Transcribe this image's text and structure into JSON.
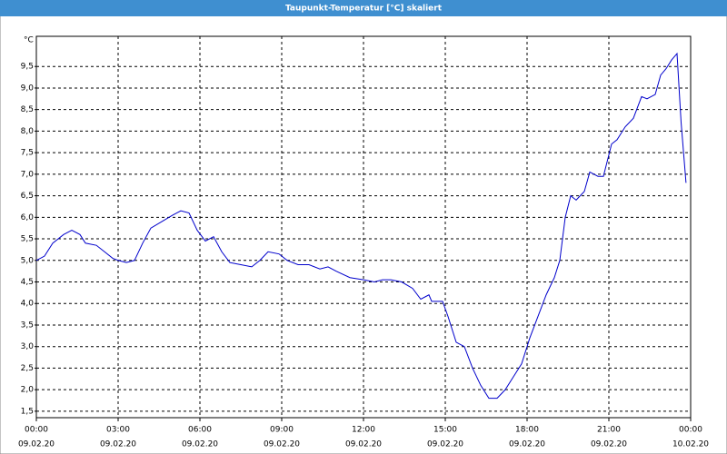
{
  "chart_data": {
    "type": "line",
    "title": "Taupunkt-Temperatur [°C] skaliert",
    "y_unit": "°C",
    "x": [
      0,
      0.3,
      0.6,
      1.0,
      1.3,
      1.6,
      1.8,
      2.2,
      2.5,
      2.8,
      3.0,
      3.3,
      3.6,
      3.9,
      4.2,
      4.6,
      5.0,
      5.3,
      5.6,
      5.9,
      6.2,
      6.5,
      6.8,
      7.1,
      7.5,
      7.9,
      8.2,
      8.5,
      8.9,
      9.2,
      9.6,
      10.0,
      10.4,
      10.7,
      11.0,
      11.5,
      12.0,
      12.4,
      12.7,
      13.0,
      13.4,
      13.8,
      14.1,
      14.4,
      14.5,
      14.9,
      15.1,
      15.4,
      15.7,
      16.0,
      16.3,
      16.6,
      16.9,
      17.2,
      17.5,
      17.8,
      18.1,
      18.4,
      18.7,
      19.0,
      19.2,
      19.4,
      19.6,
      19.8,
      20.1,
      20.3,
      20.6,
      20.8,
      21.1,
      21.3,
      21.6,
      21.9,
      22.2,
      22.4,
      22.7,
      22.9,
      23.1,
      23.3,
      23.5,
      23.65,
      23.83
    ],
    "series": [
      {
        "name": "Taupunkt-Temperatur",
        "color": "#0000cc",
        "values": [
          5.0,
          5.1,
          5.4,
          5.6,
          5.7,
          5.6,
          5.4,
          5.35,
          5.2,
          5.05,
          5.0,
          4.95,
          5.0,
          5.4,
          5.75,
          5.9,
          6.05,
          6.15,
          6.1,
          5.7,
          5.45,
          5.55,
          5.2,
          4.95,
          4.9,
          4.85,
          5.0,
          5.2,
          5.15,
          5.0,
          4.9,
          4.9,
          4.8,
          4.85,
          4.75,
          4.6,
          4.55,
          4.5,
          4.55,
          4.55,
          4.5,
          4.35,
          4.1,
          4.2,
          4.05,
          4.05,
          3.7,
          3.1,
          3.0,
          2.5,
          2.1,
          1.8,
          1.8,
          2.0,
          2.3,
          2.6,
          3.2,
          3.7,
          4.2,
          4.6,
          5.0,
          6.0,
          6.5,
          6.4,
          6.6,
          7.05,
          6.95,
          6.95,
          7.7,
          7.8,
          8.1,
          8.3,
          8.8,
          8.75,
          8.85,
          9.3,
          9.45,
          9.65,
          9.8,
          8.2,
          6.8
        ]
      }
    ],
    "xlim": [
      0,
      24
    ],
    "xticks": [
      {
        "value": 0,
        "label": "00:00"
      },
      {
        "value": 3,
        "label": "03:00"
      },
      {
        "value": 6,
        "label": "06:00"
      },
      {
        "value": 9,
        "label": "09:00"
      },
      {
        "value": 12,
        "label": "12:00"
      },
      {
        "value": 15,
        "label": "15:00"
      },
      {
        "value": 18,
        "label": "18:00"
      },
      {
        "value": 21,
        "label": "21:00"
      },
      {
        "value": 24,
        "label": "00:00"
      }
    ],
    "xtick_dates": [
      "09.02.20",
      "09.02.20",
      "09.02.20",
      "09.02.20",
      "09.02.20",
      "09.02.20",
      "09.02.20",
      "09.02.20",
      "10.02.20"
    ],
    "ylim": [
      1.35,
      10.2
    ],
    "yticks": [
      {
        "value": 1.5,
        "label": "1,5"
      },
      {
        "value": 2,
        "label": "2,0"
      },
      {
        "value": 2.5,
        "label": "2,5"
      },
      {
        "value": 3,
        "label": "3,0"
      },
      {
        "value": 3.5,
        "label": "3,5"
      },
      {
        "value": 4,
        "label": "4,0"
      },
      {
        "value": 4.5,
        "label": "4,5"
      },
      {
        "value": 5,
        "label": "5,0"
      },
      {
        "value": 5.5,
        "label": "5,5"
      },
      {
        "value": 6,
        "label": "6,0"
      },
      {
        "value": 6.5,
        "label": "6,5"
      },
      {
        "value": 7,
        "label": "7,0"
      },
      {
        "value": 7.5,
        "label": "7,5"
      },
      {
        "value": 8,
        "label": "8,0"
      },
      {
        "value": 8.5,
        "label": "8,5"
      },
      {
        "value": 9,
        "label": "9,0"
      },
      {
        "value": 9.5,
        "label": "9,5"
      }
    ],
    "grid": true
  }
}
